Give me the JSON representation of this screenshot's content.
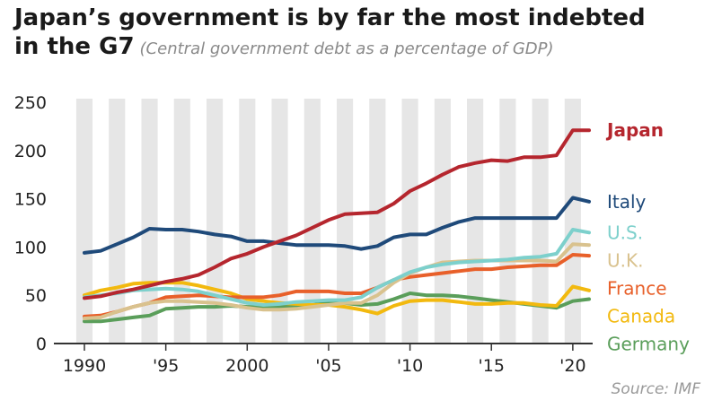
{
  "header": {
    "title_line1": "Japan’s government is by far the most indebted",
    "title_line2": "in the G7",
    "subtitle": "(Central government debt as a percentage of GDP)"
  },
  "source": "Source: IMF",
  "chart_data": {
    "type": "line",
    "x_range": [
      1990,
      2021
    ],
    "ylim": [
      0,
      250
    ],
    "yticks": [
      0,
      50,
      100,
      150,
      200,
      250
    ],
    "xticks": [
      {
        "value": 1990,
        "label": "1990"
      },
      {
        "value": 1995,
        "label": "'95"
      },
      {
        "value": 2000,
        "label": "2000"
      },
      {
        "value": 2005,
        "label": "'05"
      },
      {
        "value": 2010,
        "label": "'10"
      },
      {
        "value": 2015,
        "label": "'15"
      },
      {
        "value": 2020,
        "label": "'20"
      }
    ],
    "x": [
      1990,
      1991,
      1992,
      1993,
      1994,
      1995,
      1996,
      1997,
      1998,
      1999,
      2000,
      2001,
      2002,
      2003,
      2004,
      2005,
      2006,
      2007,
      2008,
      2009,
      2010,
      2011,
      2012,
      2013,
      2014,
      2015,
      2016,
      2017,
      2018,
      2019,
      2020,
      2021
    ],
    "series": [
      {
        "name": "Germany",
        "color": "#5a9e5a",
        "bold": false,
        "values": [
          23,
          23,
          25,
          27,
          29,
          36,
          37,
          38,
          38,
          39,
          38,
          38,
          38,
          39,
          40,
          42,
          42,
          40,
          41,
          46,
          52,
          50,
          50,
          49,
          47,
          45,
          43,
          41,
          39,
          37,
          44,
          46
        ]
      },
      {
        "name": "Canada",
        "color": "#f2b90f",
        "bold": false,
        "values": [
          50,
          55,
          58,
          62,
          63,
          63,
          63,
          60,
          56,
          52,
          46,
          44,
          42,
          41,
          40,
          40,
          38,
          35,
          31,
          39,
          44,
          45,
          45,
          43,
          41,
          41,
          42,
          42,
          40,
          39,
          59,
          55
        ]
      },
      {
        "name": "France",
        "color": "#e8602a",
        "bold": false,
        "values": [
          28,
          29,
          33,
          38,
          42,
          48,
          49,
          50,
          49,
          48,
          48,
          48,
          50,
          54,
          54,
          54,
          52,
          52,
          58,
          66,
          69,
          71,
          73,
          75,
          77,
          77,
          79,
          80,
          81,
          81,
          92,
          91
        ]
      },
      {
        "name": "U.K.",
        "color": "#d9c28e",
        "bold": false,
        "values": [
          26,
          27,
          33,
          38,
          42,
          44,
          44,
          43,
          42,
          40,
          37,
          35,
          35,
          36,
          38,
          40,
          42,
          42,
          50,
          63,
          73,
          79,
          84,
          85,
          86,
          86,
          86,
          86,
          86,
          85,
          103,
          102
        ]
      },
      {
        "name": "U.S.",
        "color": "#7dd0cc",
        "bold": false,
        "values": [
          48,
          50,
          52,
          55,
          56,
          57,
          56,
          54,
          50,
          46,
          42,
          40,
          41,
          43,
          44,
          45,
          45,
          48,
          58,
          66,
          74,
          79,
          82,
          84,
          85,
          86,
          87,
          89,
          90,
          93,
          118,
          115
        ]
      },
      {
        "name": "Italy",
        "color": "#1f4a7a",
        "bold": false,
        "values": [
          94,
          96,
          103,
          110,
          119,
          118,
          118,
          116,
          113,
          111,
          106,
          106,
          104,
          102,
          102,
          102,
          101,
          98,
          101,
          110,
          113,
          113,
          120,
          126,
          130,
          130,
          130,
          130,
          130,
          130,
          151,
          147
        ]
      },
      {
        "name": "Japan",
        "color": "#b5262e",
        "bold": true,
        "values": [
          47,
          49,
          53,
          56,
          60,
          64,
          67,
          71,
          79,
          88,
          93,
          100,
          106,
          112,
          120,
          128,
          134,
          135,
          136,
          145,
          158,
          166,
          175,
          183,
          187,
          190,
          189,
          193,
          193,
          195,
          221,
          221
        ]
      }
    ]
  }
}
